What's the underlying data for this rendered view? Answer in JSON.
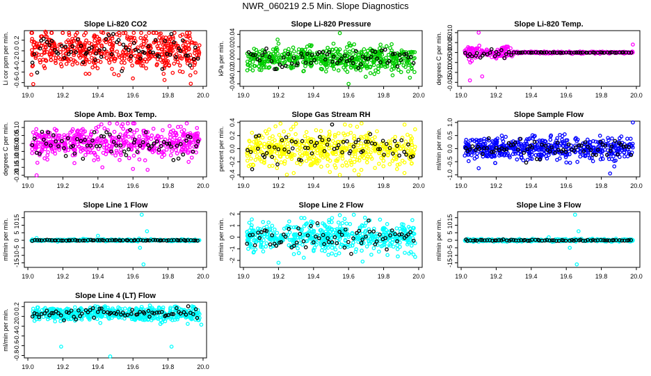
{
  "title": "NWR_060219  2.5 Min. Slope Diagnostics",
  "chart_data": [
    {
      "type": "scatter",
      "title": "Slope Li-820 CO2",
      "ylabel": "Li cor ppm per min.",
      "xlim": [
        18.98,
        20.02
      ],
      "ylim": [
        -0.67,
        0.38
      ],
      "xticks": [
        19.0,
        19.2,
        19.4,
        19.6,
        19.8,
        20.0
      ],
      "yticks": [
        -0.6,
        -0.4,
        -0.2,
        0.0,
        0.2
      ],
      "ytick_labels": [
        "-0.6",
        "-0.4",
        "-0.2",
        "0.0",
        "0.2"
      ],
      "color": "#ff0000",
      "center": 0.0,
      "spread": 0.18,
      "n": 520,
      "outliers": [
        [
          19.02,
          -0.45
        ],
        [
          19.1,
          0.36
        ],
        [
          19.42,
          0.35
        ],
        [
          19.78,
          -0.55
        ],
        [
          19.93,
          -0.62
        ]
      ]
    },
    {
      "type": "scatter",
      "title": "Slope Li-820 Pressure",
      "ylabel": "kPa per min.",
      "xlim": [
        18.98,
        20.02
      ],
      "ylim": [
        -0.044,
        0.046
      ],
      "xticks": [
        19.0,
        19.2,
        19.4,
        19.6,
        19.8,
        20.0
      ],
      "yticks": [
        -0.04,
        -0.02,
        0.0,
        0.02,
        0.04
      ],
      "ytick_labels": [
        "-0.04",
        "-0.02",
        "0.00",
        "0.02",
        "0.04"
      ],
      "color": "#00cc00",
      "center": 0.0,
      "spread": 0.01,
      "n": 520,
      "outliers": [
        [
          19.55,
          0.042
        ],
        [
          19.6,
          -0.04
        ],
        [
          19.2,
          0.025
        ],
        [
          19.95,
          -0.03
        ]
      ]
    },
    {
      "type": "scatter",
      "title": "Slope Li-820 Temp.",
      "ylabel": "degrees C per min.",
      "xlim": [
        18.98,
        20.02
      ],
      "ylim": [
        -0.017,
        0.011
      ],
      "xticks": [
        19.0,
        19.2,
        19.4,
        19.6,
        19.8,
        20.0
      ],
      "yticks": [
        -0.015,
        -0.01,
        -0.005,
        0.0,
        0.005,
        0.01
      ],
      "ytick_labels": [
        "-0.015",
        "-0.010",
        "-0.005",
        "0.000",
        "0.005",
        "0.010"
      ],
      "color": "#ff00ff",
      "center": 0.0,
      "spread": 0.0015,
      "n": 420,
      "outliers": [
        [
          19.05,
          -0.014
        ],
        [
          19.1,
          0.01
        ],
        [
          19.12,
          -0.012
        ],
        [
          19.98,
          0.004
        ]
      ]
    },
    {
      "type": "scatter",
      "title": "Slope Amb. Box Temp.",
      "ylabel": "degrees C per min.",
      "xlim": [
        18.98,
        20.02
      ],
      "ylim": [
        -0.21,
        0.14
      ],
      "xticks": [
        19.0,
        19.2,
        19.4,
        19.6,
        19.8,
        20.0
      ],
      "yticks": [
        -0.2,
        -0.15,
        -0.1,
        -0.05,
        0.0,
        0.05,
        0.1
      ],
      "ytick_labels": [
        "-0.20",
        "-0.15",
        "-0.10",
        "-0.05",
        "0.00",
        "0.05",
        "0.10"
      ],
      "color": "#ff00ff",
      "center": 0.0,
      "spread": 0.05,
      "n": 520,
      "outliers": [
        [
          19.05,
          -0.2
        ],
        [
          19.6,
          -0.16
        ],
        [
          19.42,
          0.12
        ]
      ]
    },
    {
      "type": "scatter",
      "title": "Slope Gas Stream RH",
      "ylabel": "percent per min.",
      "xlim": [
        18.98,
        20.02
      ],
      "ylim": [
        -0.43,
        0.42
      ],
      "xticks": [
        19.0,
        19.2,
        19.4,
        19.6,
        19.8,
        20.0
      ],
      "yticks": [
        -0.4,
        -0.2,
        0.0,
        0.2,
        0.4
      ],
      "ytick_labels": [
        "-0.4",
        "-0.2",
        "0.0",
        "0.2",
        "0.4"
      ],
      "color": "#ffff00",
      "center": 0.0,
      "spread": 0.14,
      "n": 520,
      "outliers": [
        [
          19.3,
          0.38
        ],
        [
          19.55,
          -0.4
        ]
      ]
    },
    {
      "type": "scatter",
      "title": "Slope Sample Flow",
      "ylabel": "ml/min per min.",
      "xlim": [
        18.98,
        20.02
      ],
      "ylim": [
        -1.08,
        1.05
      ],
      "xticks": [
        19.0,
        19.2,
        19.4,
        19.6,
        19.8,
        20.0
      ],
      "yticks": [
        -1.0,
        -0.5,
        0.0,
        0.5,
        1.0
      ],
      "ytick_labels": [
        "-1.0",
        "-0.5",
        "0.0",
        "0.5",
        "1.0"
      ],
      "color": "#0000ff",
      "center": 0.0,
      "spread": 0.22,
      "n": 520,
      "outliers": [
        [
          19.1,
          -0.75
        ],
        [
          19.85,
          -0.95
        ],
        [
          19.98,
          1.0
        ]
      ]
    },
    {
      "type": "scatter",
      "title": "Slope Line 1 Flow",
      "ylabel": "ml/min per min.",
      "xlim": [
        18.98,
        20.02
      ],
      "ylim": [
        -18,
        19
      ],
      "xticks": [
        19.0,
        19.2,
        19.4,
        19.6,
        19.8,
        20.0
      ],
      "yticks": [
        -15,
        -10,
        -5,
        0,
        5,
        10,
        15
      ],
      "ytick_labels": [
        "-15",
        "-10",
        "-5",
        "0",
        "5",
        "10",
        "15"
      ],
      "color": "#00ffff",
      "center": 0.0,
      "spread": 0.3,
      "n": 380,
      "outliers": [
        [
          19.65,
          17
        ],
        [
          19.66,
          -16
        ],
        [
          19.64,
          -5
        ],
        [
          19.68,
          6
        ],
        [
          19.4,
          3
        ],
        [
          19.05,
          1.5
        ]
      ]
    },
    {
      "type": "scatter",
      "title": "Slope Line 2 Flow",
      "ylabel": "ml/min per min.",
      "xlim": [
        18.98,
        20.02
      ],
      "ylim": [
        -2.6,
        2.2
      ],
      "xticks": [
        19.0,
        19.2,
        19.4,
        19.6,
        19.8,
        20.0
      ],
      "yticks": [
        -2,
        -1,
        0,
        1,
        2
      ],
      "ytick_labels": [
        "-2",
        "-1",
        "0",
        "1",
        "2"
      ],
      "color": "#00ffff",
      "center": 0.0,
      "spread": 0.65,
      "n": 520,
      "outliers": [
        [
          19.2,
          -2.2
        ],
        [
          19.68,
          -2.1
        ],
        [
          19.55,
          1.9
        ],
        [
          19.98,
          -1.7
        ]
      ]
    },
    {
      "type": "scatter",
      "title": "Slope Line 3 Flow",
      "ylabel": "ml/min per min.",
      "xlim": [
        18.98,
        20.02
      ],
      "ylim": [
        -18,
        19
      ],
      "xticks": [
        19.0,
        19.2,
        19.4,
        19.6,
        19.8,
        20.0
      ],
      "yticks": [
        -15,
        -10,
        -5,
        0,
        5,
        10,
        15
      ],
      "ytick_labels": [
        "-15",
        "-10",
        "-5",
        "0",
        "5",
        "10",
        "15"
      ],
      "color": "#00ffff",
      "center": 0.0,
      "spread": 0.4,
      "n": 380,
      "outliers": [
        [
          19.65,
          17
        ],
        [
          19.66,
          -16
        ],
        [
          19.62,
          -5
        ],
        [
          19.67,
          6
        ],
        [
          19.5,
          2
        ]
      ]
    },
    {
      "type": "scatter",
      "title": "Slope Line 4 (LT) Flow",
      "ylabel": "ml/min per min.",
      "xlim": [
        18.98,
        20.02
      ],
      "ylim": [
        -0.85,
        0.29
      ],
      "xticks": [
        19.0,
        19.2,
        19.4,
        19.6,
        19.8,
        20.0
      ],
      "yticks": [
        -0.8,
        -0.6,
        -0.4,
        -0.2,
        0.0,
        0.2
      ],
      "ytick_labels": [
        "-0.8",
        "-0.6",
        "-0.4",
        "-0.2",
        "0.0",
        "0.2"
      ],
      "color": "#00ffff",
      "center": 0.05,
      "spread": 0.07,
      "n": 520,
      "outliers": [
        [
          19.19,
          -0.62
        ],
        [
          19.47,
          -0.82
        ],
        [
          19.82,
          -0.62
        ],
        [
          19.99,
          -0.17
        ]
      ]
    }
  ]
}
